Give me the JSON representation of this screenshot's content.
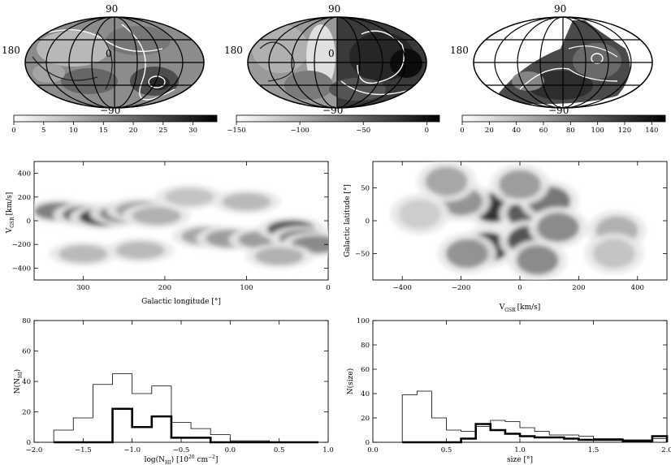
{
  "mollweide_labels": {
    "north": "90",
    "south": "−90",
    "west": "180",
    "center": "0"
  },
  "colorbars": [
    {
      "ticks": [
        "0",
        "5",
        "10",
        "15",
        "20",
        "25",
        "30"
      ],
      "tick_values": [
        0,
        5,
        10,
        15,
        20,
        25,
        30
      ],
      "min": 0,
      "max": 34
    },
    {
      "ticks": [
        "−150",
        "−100",
        "−50",
        "0"
      ],
      "tick_values": [
        -150,
        -100,
        -50,
        0
      ],
      "min": -150,
      "max": 10
    },
    {
      "ticks": [
        "0",
        "20",
        "40",
        "60",
        "80",
        "100",
        "120",
        "140"
      ],
      "tick_values": [
        0,
        20,
        40,
        60,
        80,
        100,
        120,
        140
      ],
      "min": 0,
      "max": 150
    }
  ],
  "chart_data": [
    {
      "type": "heatmap",
      "xlabel": "Galactic longitude [°]",
      "ylabel_main": "V",
      "ylabel_sub": "GSR",
      "ylabel_unit": "[km/s]",
      "xlim": [
        360,
        0
      ],
      "ylim": [
        -500,
        500
      ],
      "xticks": [
        "300",
        "200",
        "100",
        "0"
      ],
      "xtick_values": [
        300,
        200,
        100,
        0
      ],
      "yticks": [
        "−400",
        "−200",
        "0",
        "200",
        "400"
      ],
      "ytick_values": [
        -400,
        -200,
        0,
        200,
        400
      ],
      "blobs": [
        {
          "x": 330,
          "y": 80,
          "level": 0.55
        },
        {
          "x": 295,
          "y": 50,
          "level": 0.7
        },
        {
          "x": 275,
          "y": 30,
          "level": 0.85
        },
        {
          "x": 250,
          "y": 60,
          "level": 0.5
        },
        {
          "x": 230,
          "y": 90,
          "level": 0.35
        },
        {
          "x": 210,
          "y": 40,
          "level": 0.3
        },
        {
          "x": 150,
          "y": -130,
          "level": 0.35
        },
        {
          "x": 120,
          "y": -150,
          "level": 0.4
        },
        {
          "x": 80,
          "y": -160,
          "level": 0.4
        },
        {
          "x": 45,
          "y": -70,
          "level": 0.75
        },
        {
          "x": 30,
          "y": -150,
          "level": 0.55
        },
        {
          "x": 15,
          "y": -200,
          "level": 0.5
        },
        {
          "x": 100,
          "y": 160,
          "level": 0.25
        },
        {
          "x": 60,
          "y": -300,
          "level": 0.3
        },
        {
          "x": 300,
          "y": -280,
          "level": 0.25
        },
        {
          "x": 170,
          "y": 200,
          "level": 0.2
        },
        {
          "x": 230,
          "y": -250,
          "level": 0.25
        }
      ]
    },
    {
      "type": "heatmap",
      "xlabel_main": "V",
      "xlabel_sub": "GSR",
      "xlabel_unit": "[km/s]",
      "ylabel": "Galactic latitude [°]",
      "xlim": [
        -500,
        500
      ],
      "ylim": [
        -90,
        90
      ],
      "xticks": [
        "−400",
        "−200",
        "0",
        "200",
        "400"
      ],
      "xtick_values": [
        -400,
        -200,
        0,
        200,
        400
      ],
      "yticks": [
        "−50",
        "0",
        "50"
      ],
      "ytick_values": [
        -50,
        0,
        50
      ],
      "blobs": [
        {
          "x": -90,
          "y": 20,
          "level": 0.95
        },
        {
          "x": -110,
          "y": -40,
          "level": 0.9
        },
        {
          "x": 30,
          "y": 10,
          "level": 0.75
        },
        {
          "x": 30,
          "y": -30,
          "level": 0.8
        },
        {
          "x": 100,
          "y": 30,
          "level": 0.6
        },
        {
          "x": -200,
          "y": 30,
          "level": 0.45
        },
        {
          "x": -250,
          "y": 60,
          "level": 0.35
        },
        {
          "x": 60,
          "y": -60,
          "level": 0.5
        },
        {
          "x": -180,
          "y": -50,
          "level": 0.45
        },
        {
          "x": 0,
          "y": 55,
          "level": 0.4
        },
        {
          "x": 130,
          "y": -10,
          "level": 0.5
        },
        {
          "x": 330,
          "y": -15,
          "level": 0.3
        },
        {
          "x": 320,
          "y": -50,
          "level": 0.2
        },
        {
          "x": -340,
          "y": 10,
          "level": 0.15
        }
      ]
    },
    {
      "type": "bar",
      "xlabel_main": "log(N",
      "xlabel_sub": "HI",
      "xlabel_rest": ") [10",
      "xlabel_sup": "20",
      "xlabel_end": " cm",
      "xlabel_sup2": "−2",
      "xlabel_close": "]",
      "ylabel_main": "N(N",
      "ylabel_sub": "HI",
      "ylabel_close": ")",
      "xlim": [
        -2.0,
        1.0
      ],
      "ylim": [
        0,
        80
      ],
      "xticks": [
        "−2.0",
        "−1.5",
        "−1.0",
        "−0.5",
        "0.0",
        "0.5",
        "1.0"
      ],
      "xtick_values": [
        -2.0,
        -1.5,
        -1.0,
        -0.5,
        0.0,
        0.5,
        1.0
      ],
      "yticks": [
        "0",
        "20",
        "40",
        "60",
        "80"
      ],
      "ytick_values": [
        0,
        20,
        40,
        60,
        80
      ],
      "bin_edges": [
        -1.8,
        -1.6,
        -1.4,
        -1.2,
        -1.0,
        -0.8,
        -0.6,
        -0.4,
        -0.2,
        0.0,
        0.2,
        0.4,
        0.6,
        0.8,
        0.9
      ],
      "series": [
        {
          "values": [
            8,
            16,
            38,
            45,
            32,
            37,
            13,
            9,
            5,
            1,
            1,
            0,
            0,
            0
          ],
          "style": "thin"
        },
        {
          "values": [
            0,
            0,
            0,
            22,
            10,
            17,
            3,
            3,
            0,
            0,
            0,
            0,
            0,
            0
          ],
          "style": "thick"
        }
      ]
    },
    {
      "type": "bar",
      "xlabel": "size [°]",
      "ylabel": "N(size)",
      "xlim": [
        0.0,
        2.0
      ],
      "ylim": [
        0,
        100
      ],
      "xticks": [
        "0.0",
        "0.5",
        "1.0",
        "1.5",
        "2.0"
      ],
      "xtick_values": [
        0.0,
        0.5,
        1.0,
        1.5,
        2.0
      ],
      "yticks": [
        "0",
        "20",
        "40",
        "60",
        "80",
        "100"
      ],
      "ytick_values": [
        0,
        20,
        40,
        60,
        80,
        100
      ],
      "bin_edges": [
        0.2,
        0.3,
        0.4,
        0.5,
        0.6,
        0.7,
        0.8,
        0.9,
        1.0,
        1.1,
        1.2,
        1.3,
        1.4,
        1.5,
        1.6,
        1.7,
        1.8,
        1.9,
        2.0
      ],
      "series": [
        {
          "values": [
            39,
            42,
            20,
            10,
            9,
            13,
            18,
            17,
            12,
            9,
            6,
            6,
            5,
            3,
            3,
            2,
            2,
            3
          ],
          "style": "thin"
        },
        {
          "values": [
            0,
            0,
            0,
            0,
            3,
            15,
            10,
            7,
            5,
            4,
            4,
            3,
            2,
            2,
            2,
            1,
            1,
            5
          ],
          "style": "thick"
        }
      ]
    }
  ]
}
